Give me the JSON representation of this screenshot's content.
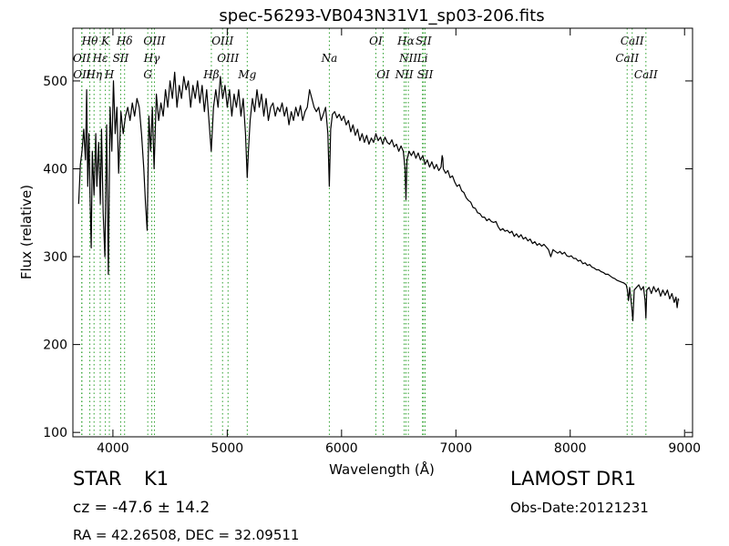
{
  "chart_data": {
    "type": "line",
    "title": "spec-56293-VB043N31V1_sp03-206.fits",
    "xlabel": "Wavelength (Å)",
    "ylabel": "Flux (relative)",
    "xlim": [
      3650,
      9070
    ],
    "ylim": [
      95,
      560
    ],
    "xticks": [
      4000,
      5000,
      6000,
      7000,
      8000,
      9000
    ],
    "yticks": [
      100,
      200,
      300,
      400,
      500
    ],
    "grid": false,
    "series": [
      {
        "color": "#000000",
        "points": [
          [
            3700,
            360
          ],
          [
            3715,
            405
          ],
          [
            3730,
            420
          ],
          [
            3745,
            445
          ],
          [
            3760,
            410
          ],
          [
            3770,
            490
          ],
          [
            3780,
            380
          ],
          [
            3790,
            440
          ],
          [
            3800,
            370
          ],
          [
            3810,
            310
          ],
          [
            3820,
            420
          ],
          [
            3835,
            370
          ],
          [
            3850,
            440
          ],
          [
            3860,
            380
          ],
          [
            3875,
            430
          ],
          [
            3890,
            360
          ],
          [
            3900,
            445
          ],
          [
            3915,
            350
          ],
          [
            3930,
            300
          ],
          [
            3945,
            450
          ],
          [
            3960,
            280
          ],
          [
            3975,
            470
          ],
          [
            3990,
            420
          ],
          [
            4005,
            500
          ],
          [
            4020,
            440
          ],
          [
            4035,
            470
          ],
          [
            4050,
            395
          ],
          [
            4070,
            465
          ],
          [
            4090,
            440
          ],
          [
            4110,
            460
          ],
          [
            4130,
            470
          ],
          [
            4150,
            455
          ],
          [
            4170,
            475
          ],
          [
            4190,
            460
          ],
          [
            4210,
            480
          ],
          [
            4230,
            470
          ],
          [
            4250,
            440
          ],
          [
            4270,
            400
          ],
          [
            4285,
            360
          ],
          [
            4300,
            330
          ],
          [
            4315,
            460
          ],
          [
            4330,
            420
          ],
          [
            4345,
            470
          ],
          [
            4360,
            400
          ],
          [
            4380,
            485
          ],
          [
            4400,
            455
          ],
          [
            4420,
            475
          ],
          [
            4440,
            460
          ],
          [
            4460,
            490
          ],
          [
            4480,
            470
          ],
          [
            4500,
            500
          ],
          [
            4520,
            480
          ],
          [
            4540,
            510
          ],
          [
            4560,
            470
          ],
          [
            4580,
            495
          ],
          [
            4600,
            480
          ],
          [
            4620,
            505
          ],
          [
            4640,
            490
          ],
          [
            4660,
            500
          ],
          [
            4680,
            470
          ],
          [
            4700,
            495
          ],
          [
            4720,
            480
          ],
          [
            4740,
            500
          ],
          [
            4760,
            475
          ],
          [
            4780,
            495
          ],
          [
            4800,
            465
          ],
          [
            4820,
            490
          ],
          [
            4840,
            455
          ],
          [
            4860,
            420
          ],
          [
            4880,
            470
          ],
          [
            4900,
            490
          ],
          [
            4920,
            470
          ],
          [
            4940,
            505
          ],
          [
            4960,
            480
          ],
          [
            4980,
            495
          ],
          [
            5000,
            470
          ],
          [
            5020,
            490
          ],
          [
            5040,
            460
          ],
          [
            5060,
            485
          ],
          [
            5080,
            470
          ],
          [
            5100,
            490
          ],
          [
            5120,
            460
          ],
          [
            5140,
            480
          ],
          [
            5160,
            440
          ],
          [
            5175,
            390
          ],
          [
            5185,
            420
          ],
          [
            5200,
            455
          ],
          [
            5220,
            480
          ],
          [
            5240,
            465
          ],
          [
            5260,
            490
          ],
          [
            5280,
            470
          ],
          [
            5300,
            485
          ],
          [
            5320,
            460
          ],
          [
            5340,
            480
          ],
          [
            5360,
            455
          ],
          [
            5380,
            470
          ],
          [
            5400,
            475
          ],
          [
            5420,
            460
          ],
          [
            5440,
            470
          ],
          [
            5460,
            465
          ],
          [
            5480,
            475
          ],
          [
            5500,
            460
          ],
          [
            5520,
            470
          ],
          [
            5540,
            450
          ],
          [
            5560,
            465
          ],
          [
            5580,
            455
          ],
          [
            5600,
            470
          ],
          [
            5620,
            460
          ],
          [
            5640,
            472
          ],
          [
            5660,
            455
          ],
          [
            5680,
            465
          ],
          [
            5700,
            470
          ],
          [
            5720,
            490
          ],
          [
            5740,
            480
          ],
          [
            5760,
            470
          ],
          [
            5780,
            465
          ],
          [
            5800,
            470
          ],
          [
            5820,
            455
          ],
          [
            5840,
            462
          ],
          [
            5860,
            470
          ],
          [
            5880,
            440
          ],
          [
            5893,
            380
          ],
          [
            5905,
            445
          ],
          [
            5920,
            462
          ],
          [
            5940,
            465
          ],
          [
            5960,
            458
          ],
          [
            5980,
            462
          ],
          [
            6000,
            455
          ],
          [
            6020,
            460
          ],
          [
            6040,
            450
          ],
          [
            6060,
            455
          ],
          [
            6080,
            442
          ],
          [
            6100,
            450
          ],
          [
            6120,
            438
          ],
          [
            6140,
            445
          ],
          [
            6160,
            432
          ],
          [
            6180,
            440
          ],
          [
            6200,
            430
          ],
          [
            6220,
            438
          ],
          [
            6240,
            428
          ],
          [
            6260,
            435
          ],
          [
            6280,
            430
          ],
          [
            6300,
            440
          ],
          [
            6320,
            432
          ],
          [
            6340,
            436
          ],
          [
            6360,
            428
          ],
          [
            6380,
            436
          ],
          [
            6400,
            430
          ],
          [
            6420,
            428
          ],
          [
            6440,
            433
          ],
          [
            6460,
            425
          ],
          [
            6480,
            428
          ],
          [
            6500,
            420
          ],
          [
            6520,
            426
          ],
          [
            6540,
            420
          ],
          [
            6555,
            400
          ],
          [
            6563,
            365
          ],
          [
            6572,
            410
          ],
          [
            6590,
            420
          ],
          [
            6610,
            415
          ],
          [
            6630,
            420
          ],
          [
            6650,
            412
          ],
          [
            6670,
            418
          ],
          [
            6690,
            410
          ],
          [
            6710,
            415
          ],
          [
            6730,
            405
          ],
          [
            6750,
            410
          ],
          [
            6770,
            402
          ],
          [
            6790,
            408
          ],
          [
            6810,
            400
          ],
          [
            6830,
            405
          ],
          [
            6850,
            398
          ],
          [
            6870,
            402
          ],
          [
            6880,
            415
          ],
          [
            6885,
            412
          ],
          [
            6890,
            400
          ],
          [
            6910,
            395
          ],
          [
            6930,
            398
          ],
          [
            6950,
            390
          ],
          [
            6970,
            392
          ],
          [
            6990,
            385
          ],
          [
            7010,
            380
          ],
          [
            7030,
            382
          ],
          [
            7050,
            375
          ],
          [
            7070,
            373
          ],
          [
            7090,
            367
          ],
          [
            7110,
            364
          ],
          [
            7130,
            362
          ],
          [
            7150,
            356
          ],
          [
            7170,
            355
          ],
          [
            7190,
            350
          ],
          [
            7210,
            349
          ],
          [
            7230,
            345
          ],
          [
            7250,
            345
          ],
          [
            7270,
            341
          ],
          [
            7290,
            343
          ],
          [
            7310,
            340
          ],
          [
            7330,
            339
          ],
          [
            7350,
            340
          ],
          [
            7370,
            334
          ],
          [
            7390,
            330
          ],
          [
            7410,
            332
          ],
          [
            7430,
            329
          ],
          [
            7450,
            330
          ],
          [
            7470,
            327
          ],
          [
            7490,
            329
          ],
          [
            7510,
            323
          ],
          [
            7530,
            326
          ],
          [
            7550,
            322
          ],
          [
            7570,
            325
          ],
          [
            7590,
            320
          ],
          [
            7610,
            322
          ],
          [
            7630,
            318
          ],
          [
            7650,
            320
          ],
          [
            7670,
            315
          ],
          [
            7690,
            317
          ],
          [
            7710,
            313
          ],
          [
            7730,
            315
          ],
          [
            7750,
            312
          ],
          [
            7770,
            314
          ],
          [
            7790,
            311
          ],
          [
            7810,
            308
          ],
          [
            7830,
            300
          ],
          [
            7850,
            308
          ],
          [
            7870,
            306
          ],
          [
            7890,
            304
          ],
          [
            7910,
            306
          ],
          [
            7930,
            303
          ],
          [
            7950,
            305
          ],
          [
            7970,
            301
          ],
          [
            7990,
            300
          ],
          [
            8010,
            301
          ],
          [
            8030,
            298
          ],
          [
            8050,
            298
          ],
          [
            8070,
            295
          ],
          [
            8090,
            296
          ],
          [
            8110,
            292
          ],
          [
            8130,
            293
          ],
          [
            8150,
            290
          ],
          [
            8170,
            291
          ],
          [
            8190,
            288
          ],
          [
            8210,
            287
          ],
          [
            8230,
            285
          ],
          [
            8250,
            285
          ],
          [
            8270,
            283
          ],
          [
            8290,
            282
          ],
          [
            8310,
            280
          ],
          [
            8330,
            280
          ],
          [
            8350,
            278
          ],
          [
            8370,
            276
          ],
          [
            8390,
            275
          ],
          [
            8410,
            273
          ],
          [
            8430,
            272
          ],
          [
            8450,
            271
          ],
          [
            8470,
            270
          ],
          [
            8490,
            268
          ],
          [
            8500,
            262
          ],
          [
            8510,
            250
          ],
          [
            8520,
            265
          ],
          [
            8540,
            240
          ],
          [
            8548,
            227
          ],
          [
            8560,
            262
          ],
          [
            8580,
            265
          ],
          [
            8600,
            268
          ],
          [
            8620,
            262
          ],
          [
            8640,
            266
          ],
          [
            8655,
            250
          ],
          [
            8662,
            230
          ],
          [
            8670,
            262
          ],
          [
            8690,
            265
          ],
          [
            8710,
            258
          ],
          [
            8730,
            266
          ],
          [
            8750,
            260
          ],
          [
            8770,
            264
          ],
          [
            8790,
            255
          ],
          [
            8810,
            262
          ],
          [
            8830,
            256
          ],
          [
            8850,
            262
          ],
          [
            8870,
            252
          ],
          [
            8890,
            258
          ],
          [
            8910,
            248
          ],
          [
            8925,
            254
          ],
          [
            8935,
            242
          ],
          [
            8945,
            252
          ],
          [
            8950,
            250
          ]
        ]
      }
    ],
    "line_markers": [
      {
        "label": "Hθ",
        "x": 3798,
        "row": 0
      },
      {
        "label": "K",
        "x": 3934,
        "row": 0
      },
      {
        "label": "Hδ",
        "x": 4102,
        "row": 0
      },
      {
        "label": "OIII",
        "x": 4363,
        "row": 0
      },
      {
        "label": "OIII",
        "x": 4959,
        "row": 0
      },
      {
        "label": "OI",
        "x": 6300,
        "row": 0
      },
      {
        "label": "Hα",
        "x": 6563,
        "row": 0
      },
      {
        "label": "SII",
        "x": 6717,
        "row": 0
      },
      {
        "label": "CaII",
        "x": 8542,
        "row": 0
      },
      {
        "label": "OII",
        "x": 3727,
        "row": 1
      },
      {
        "label": "Hε",
        "x": 3889,
        "row": 1
      },
      {
        "label": "SII",
        "x": 4068,
        "row": 1
      },
      {
        "label": "Hγ",
        "x": 4340,
        "row": 1
      },
      {
        "label": "OIII",
        "x": 5007,
        "row": 1
      },
      {
        "label": "Na",
        "x": 5893,
        "row": 1
      },
      {
        "label": "NII",
        "x": 6584,
        "row": 1
      },
      {
        "label": "Li",
        "x": 6708,
        "row": 1
      },
      {
        "label": "CaII",
        "x": 8498,
        "row": 1
      },
      {
        "label": "OII",
        "x": 3729,
        "row": 2
      },
      {
        "label": "Hη",
        "x": 3835,
        "row": 2
      },
      {
        "label": "H",
        "x": 3969,
        "row": 2
      },
      {
        "label": "G",
        "x": 4305,
        "row": 2
      },
      {
        "label": "Hβ",
        "x": 4861,
        "row": 2
      },
      {
        "label": "Mg",
        "x": 5175,
        "row": 2
      },
      {
        "label": "OI",
        "x": 6364,
        "row": 2
      },
      {
        "label": "NII",
        "x": 6548,
        "row": 2
      },
      {
        "label": "SII",
        "x": 6731,
        "row": 2
      },
      {
        "label": "CaII",
        "x": 8662,
        "row": 2
      }
    ]
  },
  "info": {
    "class_label": "STAR",
    "subclass_label": "K1",
    "survey_label": "LAMOST DR1",
    "cz_text": "cz = -47.6 ± 14.2",
    "obs_date_text": "Obs-Date:20121231",
    "radec_text": "RA = 42.26508, DEC = 32.09511"
  }
}
